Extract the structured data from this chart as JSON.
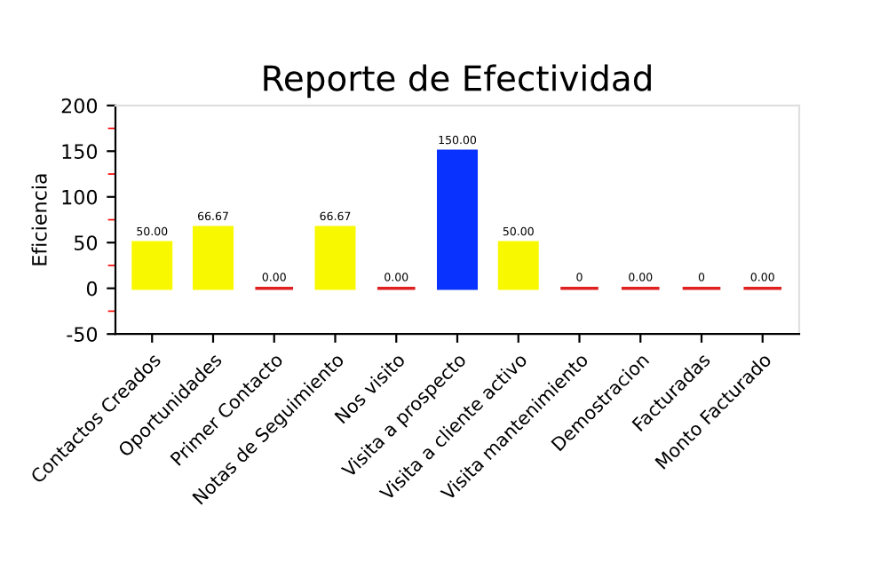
{
  "chart_data": {
    "type": "bar",
    "title": "Reporte de Efectividad",
    "ylabel": "Eficiencia",
    "categories": [
      "Contactos Creados",
      "Oportunidades",
      "Primer Contacto",
      "Notas de Seguimiento",
      "Nos visito",
      "Visita a prospecto",
      "Visita a cliente activo",
      "Visita mantenimiento",
      "Demostracion",
      "Facturadas",
      "Monto Facturado"
    ],
    "values": [
      50,
      66.67,
      0,
      66.67,
      0,
      150,
      50,
      0,
      0,
      0,
      0
    ],
    "colors": [
      "#f8f800",
      "#f8f800",
      "#e02020",
      "#f8f800",
      "#e02020",
      "#0a32ff",
      "#f8f800",
      "#e02020",
      "#e02020",
      "#e02020",
      "#e02020"
    ],
    "value_labels": [
      "50.00",
      "66.67",
      "0.00",
      "66.67",
      "0.00",
      "150.00",
      "50.00",
      "0",
      "0.00",
      "0",
      "0.00"
    ],
    "ylim": [
      -50,
      200
    ],
    "yticks": [
      -50,
      0,
      50,
      100,
      150,
      200
    ],
    "grid": false
  }
}
